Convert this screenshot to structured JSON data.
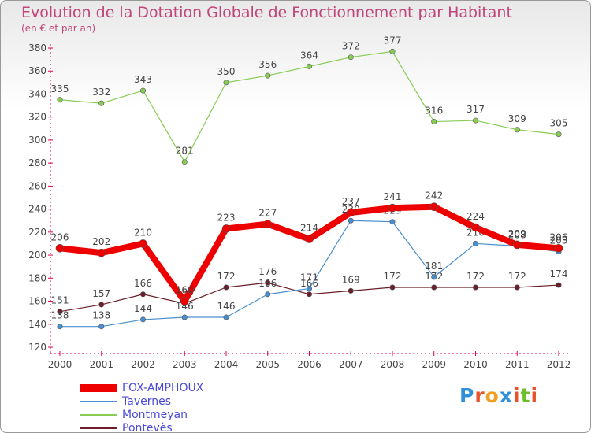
{
  "chart_data": {
    "type": "line",
    "title": "Evolution de la Dotation Globale de Fonctionnement par Habitant",
    "subtitle": "(en € et par an)",
    "x": [
      "2000",
      "2001",
      "2002",
      "2003",
      "2004",
      "2005",
      "2006",
      "2007",
      "2008",
      "2009",
      "2010",
      "2011",
      "2012"
    ],
    "ylim": [
      120,
      380
    ],
    "yticks": [
      120,
      140,
      160,
      180,
      200,
      220,
      240,
      260,
      280,
      300,
      320,
      340,
      360,
      380
    ],
    "grid": false,
    "legend_position": "bottom-left",
    "series": [
      {
        "name": "Montmeyan",
        "color": "#88cc55",
        "width": 1.2,
        "values": [
          335,
          332,
          343,
          281,
          350,
          356,
          364,
          372,
          377,
          316,
          317,
          309,
          305
        ]
      },
      {
        "name": "Pontevès",
        "color": "#6b1f2a",
        "width": 1.2,
        "values": [
          151,
          157,
          166,
          158,
          172,
          176,
          166,
          169,
          172,
          172,
          172,
          172,
          174
        ],
        "labels": [
          "151",
          "157",
          "166",
          "158",
          "172",
          "176",
          "166",
          "169",
          "172",
          "172",
          "172",
          "172",
          "174"
        ]
      },
      {
        "name": "Tavernes",
        "color": "#4a8ed0",
        "width": 1.2,
        "values": [
          138,
          138,
          144,
          146,
          146,
          166,
          171,
          230,
          229,
          181,
          210,
          208,
          203
        ],
        "labels": [
          "138",
          "138",
          "144",
          "146",
          "146",
          "166",
          "171",
          "230",
          "229",
          "181",
          "210",
          "208",
          "203"
        ]
      },
      {
        "name": "FOX-AMPHOUX",
        "color": "#ee0000",
        "width": 8,
        "values": [
          206,
          202,
          210,
          160,
          223,
          227,
          214,
          237,
          241,
          242,
          224,
          209,
          206
        ],
        "labels": [
          "206",
          "202",
          "210",
          "160",
          "223",
          "227",
          "214",
          "237",
          "241",
          "242",
          "224",
          "209",
          "206"
        ]
      }
    ]
  },
  "legend": {
    "items": [
      {
        "name": "FOX-AMPHOUX",
        "color": "#ee0000"
      },
      {
        "name": "Tavernes",
        "color": "#4a8ed0"
      },
      {
        "name": "Montmeyan",
        "color": "#88cc55"
      },
      {
        "name": "Pontevès",
        "color": "#6b1f2a"
      }
    ]
  },
  "logo": {
    "letters": [
      "P",
      "r",
      "o",
      "x",
      "i",
      "t",
      "i"
    ],
    "colors": [
      "#2f8fd8",
      "#e8542a",
      "#f0a020",
      "#2f8fd8",
      "#e8542a",
      "#6cbf2a",
      "#e8542a"
    ]
  }
}
